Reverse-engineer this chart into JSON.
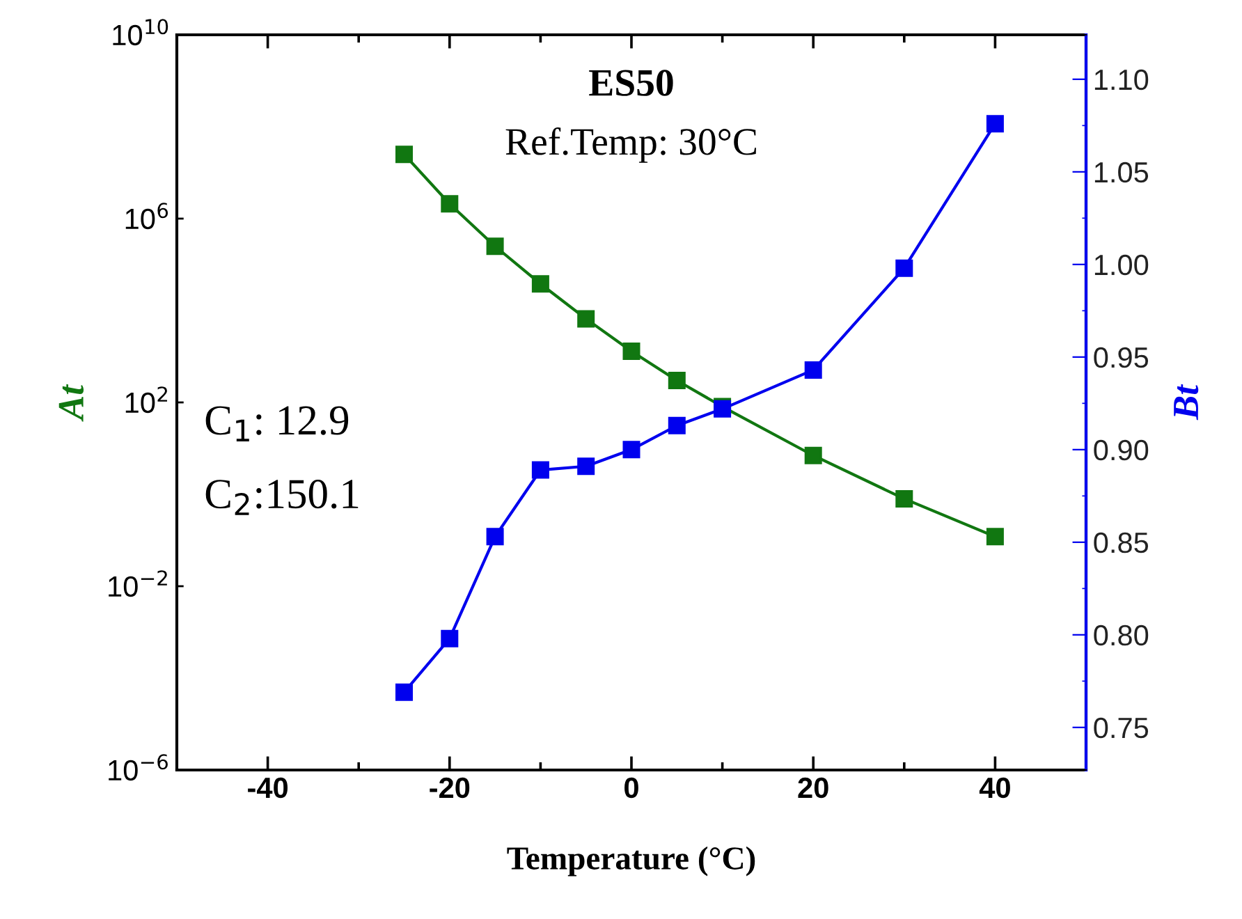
{
  "chart_data": {
    "type": "line",
    "xlabel": "Temperature (°C)",
    "ylabel": "At",
    "y2label": "Bt",
    "x": [
      -25,
      -20,
      -15,
      -10,
      -5,
      0,
      5,
      10,
      20,
      30,
      40
    ],
    "series": [
      {
        "color": "#117711",
        "values": [
          25000000,
          2100000,
          250000,
          38000,
          6600,
          1300,
          300,
          81,
          7,
          0.8,
          0.12
        ]
      },
      {
        "color": "#0000ee",
        "axis": "y2",
        "values": [
          0.769,
          0.798,
          0.853,
          0.889,
          0.891,
          0.9,
          0.913,
          0.922,
          0.943,
          0.998,
          1.076
        ]
      }
    ],
    "log": "y",
    "marker": "square",
    "line_style": "solid",
    "grid": false,
    "xlim": [
      -50,
      50
    ],
    "xticks": [
      -40,
      -20,
      0,
      20,
      40
    ],
    "ylim": [
      1e-06,
      10000000000.0
    ],
    "yticks": [
      {
        "value": 1e-06,
        "label": "10$^{−6}$"
      },
      {
        "value": 0.01,
        "label": "10$^{−2}$"
      },
      {
        "value": 100,
        "label": "10$^{2}$"
      },
      {
        "value": 1000000,
        "label": "10$^{6}$"
      },
      {
        "value": 10000000000.0,
        "label": "10$^{10}$"
      }
    ],
    "y2lim": [
      0.727,
      1.124
    ],
    "y2ticks": [
      0.75,
      {
        "value": 0.8,
        "label": "0.80"
      },
      0.85,
      {
        "value": 0.9,
        "label": "0.90"
      },
      0.95,
      {
        "value": 1.0,
        "label": "1.00"
      },
      1.05,
      {
        "value": 1.1,
        "label": "1.10"
      }
    ],
    "annotations": [
      "ES50",
      "Ref.Temp: 30°C",
      "C$_{1}$: 12.9",
      "C$_{2}$:150.1"
    ]
  }
}
